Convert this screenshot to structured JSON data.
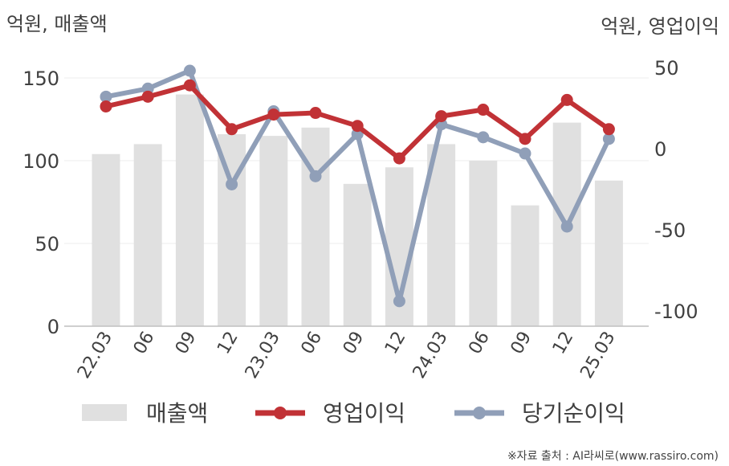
{
  "chart_data": {
    "type": "bar+line",
    "left_axis_label": "억원, 매출액",
    "right_axis_label": "억원, 영업이익",
    "categories": [
      "22.03",
      "06",
      "09",
      "12",
      "23.03",
      "06",
      "09",
      "12",
      "24.03",
      "06",
      "09",
      "12",
      "25.03"
    ],
    "left_ylim": [
      0,
      150
    ],
    "left_ticks": [
      0,
      50,
      100,
      150
    ],
    "right_ylim": [
      -100,
      50
    ],
    "right_ticks": [
      50,
      0,
      -50,
      -100
    ],
    "grid": true,
    "series": [
      {
        "name": "매출액",
        "type": "bar",
        "axis": "left",
        "color": "#e0e0e0",
        "values": [
          104,
          110,
          140,
          116,
          115,
          120,
          86,
          96,
          110,
          100,
          73,
          123,
          88
        ]
      },
      {
        "name": "영업이익",
        "type": "line",
        "axis": "right",
        "color": "#c13236",
        "values": [
          26,
          32,
          39,
          12,
          21,
          22,
          14,
          -6,
          20,
          24,
          6,
          30,
          12
        ]
      },
      {
        "name": "당기순이익",
        "type": "line",
        "axis": "right",
        "color": "#909fb8",
        "values": [
          32,
          37,
          48,
          -22,
          23,
          -17,
          9,
          -94,
          15,
          7,
          -3,
          -48,
          6
        ]
      }
    ],
    "legend_position": "bottom"
  },
  "footer": {
    "source": "※자료 출처 : AI라씨로(www.rassiro.com)"
  }
}
